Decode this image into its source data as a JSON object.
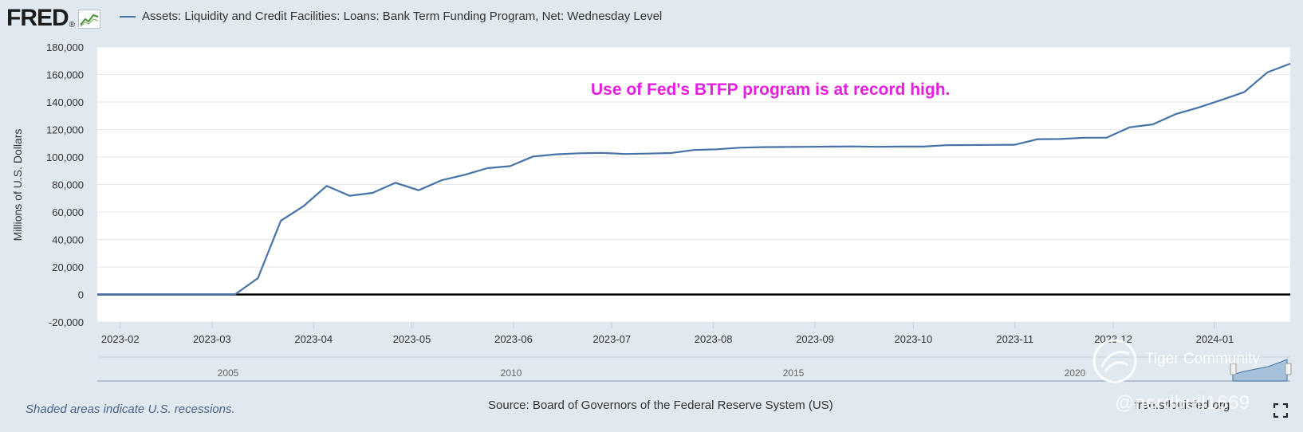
{
  "header": {
    "logo_text": "FRED",
    "logo_icon": "fred-chart-icon",
    "series_title": "Assets: Liquidity and Credit Facilities: Loans: Bank Term Funding Program, Net: Wednesday Level"
  },
  "annotation": "Use of Fed's BTFP program is at record high.",
  "footer": {
    "recession_note": "Shaded areas indicate U.S. recessions.",
    "source": "Source: Board of Governors of the Federal Reserve System (US)",
    "site": "fred.stlouisfed.org"
  },
  "watermark": {
    "brand": "Tiger Community",
    "user": "@nerdbull1669"
  },
  "colors": {
    "line": "#4572a7",
    "annotation": "#e61ee0",
    "background": "#e1e9f0",
    "plot": "#ffffff"
  },
  "navigator": {
    "year_labels": [
      "2005",
      "2010",
      "2015",
      "2020"
    ]
  },
  "chart_data": {
    "type": "line",
    "title": "",
    "xlabel": "",
    "ylabel": "Millions of U.S. Dollars",
    "ylim": [
      -20000,
      180000
    ],
    "yticks": [
      -20000,
      0,
      20000,
      40000,
      60000,
      80000,
      100000,
      120000,
      140000,
      160000,
      180000
    ],
    "ytick_labels": [
      "-20,000",
      "0",
      "20,000",
      "40,000",
      "60,000",
      "80,000",
      "100,000",
      "120,000",
      "140,000",
      "160,000",
      "180,000"
    ],
    "xlim": [
      "2023-01-25",
      "2024-01-24"
    ],
    "xtick_labels": [
      "2023-02",
      "2023-03",
      "2023-04",
      "2023-05",
      "2023-06",
      "2023-07",
      "2023-08",
      "2023-09",
      "2023-10",
      "2023-11",
      "2023-12",
      "2024-01"
    ],
    "xtick_dates": [
      "2023-02-01",
      "2023-03-01",
      "2023-04-01",
      "2023-05-01",
      "2023-06-01",
      "2023-07-01",
      "2023-08-01",
      "2023-09-01",
      "2023-10-01",
      "2023-11-01",
      "2023-12-01",
      "2024-01-01"
    ],
    "grid": true,
    "legend": "top-left",
    "series": [
      {
        "name": "Assets: Liquidity and Credit Facilities: Loans: Bank Term Funding Program, Net: Wednesday Level",
        "x": [
          "2023-01-25",
          "2023-02-01",
          "2023-02-08",
          "2023-02-15",
          "2023-02-22",
          "2023-03-01",
          "2023-03-08",
          "2023-03-15",
          "2023-03-22",
          "2023-03-29",
          "2023-04-05",
          "2023-04-12",
          "2023-04-19",
          "2023-04-26",
          "2023-05-03",
          "2023-05-10",
          "2023-05-17",
          "2023-05-24",
          "2023-05-31",
          "2023-06-07",
          "2023-06-14",
          "2023-06-21",
          "2023-06-28",
          "2023-07-05",
          "2023-07-12",
          "2023-07-19",
          "2023-07-26",
          "2023-08-02",
          "2023-08-09",
          "2023-08-16",
          "2023-08-23",
          "2023-08-30",
          "2023-09-06",
          "2023-09-13",
          "2023-09-20",
          "2023-09-27",
          "2023-10-04",
          "2023-10-11",
          "2023-10-18",
          "2023-10-25",
          "2023-11-01",
          "2023-11-08",
          "2023-11-15",
          "2023-11-22",
          "2023-11-29",
          "2023-12-06",
          "2023-12-13",
          "2023-12-20",
          "2023-12-27",
          "2024-01-03",
          "2024-01-10",
          "2024-01-17",
          "2024-01-24"
        ],
        "values": [
          0,
          0,
          0,
          0,
          0,
          0,
          0,
          11900,
          53700,
          64400,
          79000,
          71800,
          73900,
          81300,
          75800,
          83100,
          87000,
          91900,
          93400,
          100400,
          102000,
          102700,
          103000,
          102200,
          102500,
          102900,
          105100,
          105600,
          106800,
          107200,
          107300,
          107400,
          107600,
          107700,
          107400,
          107600,
          107600,
          108600,
          108700,
          108800,
          108900,
          113000,
          113100,
          114000,
          114100,
          121600,
          123700,
          131200,
          136000,
          141500,
          147300,
          161500,
          167900
        ]
      }
    ]
  }
}
